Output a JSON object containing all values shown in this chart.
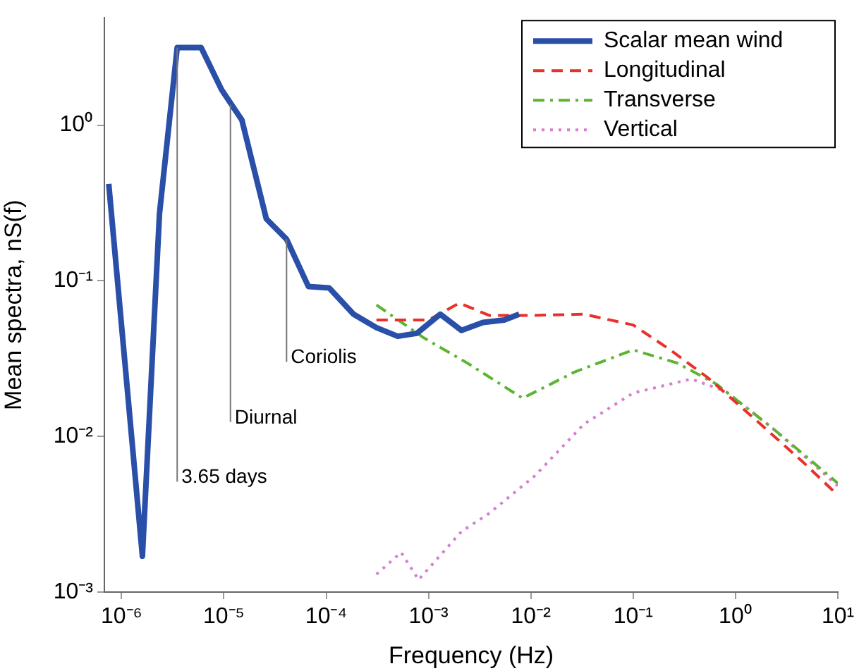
{
  "chart_data": {
    "type": "line",
    "xlabel": "Frequency (Hz)",
    "ylabel": "Mean spectra, nS(f)",
    "log": "xy",
    "grid": false,
    "legend": "top right",
    "marker": "none",
    "xlim": [
      6.8e-07,
      10
    ],
    "ylim": [
      0.001,
      4.9
    ],
    "xticks": [
      {
        "value": 1e-06,
        "label": "10⁻⁶"
      },
      {
        "value": 1e-05,
        "label": "10⁻⁵"
      },
      {
        "value": 0.0001,
        "label": "10⁻⁴"
      },
      {
        "value": 0.001,
        "label": "10⁻³"
      },
      {
        "value": 0.01,
        "label": "10⁻²"
      },
      {
        "value": 0.1,
        "label": "10⁻¹"
      },
      {
        "value": 1,
        "label": "10⁰"
      },
      {
        "value": 10,
        "label": "10¹"
      }
    ],
    "yticks": [
      {
        "value": 0.001,
        "label": "10⁻³"
      },
      {
        "value": 0.01,
        "label": "10⁻²"
      },
      {
        "value": 0.1,
        "label": "10⁻¹"
      },
      {
        "value": 1,
        "label": "10⁰"
      }
    ],
    "series": [
      {
        "name": "Scalar mean wind",
        "color": "#2a4fa8",
        "line_style": "solid",
        "x": [
          7.5e-07,
          1.6e-06,
          2.35e-06,
          3.5e-06,
          6e-06,
          9.5e-06,
          1.5e-05,
          2.6e-05,
          4.1e-05,
          6.7e-05,
          0.000107,
          0.000185,
          0.00031,
          0.0005,
          0.00077,
          0.0013,
          0.0021,
          0.0034,
          0.0055,
          0.0077
        ],
        "values": [
          0.42,
          0.0017,
          0.27,
          3.15,
          3.15,
          1.69,
          1.08,
          0.25,
          0.185,
          0.092,
          0.09,
          0.061,
          0.05,
          0.044,
          0.046,
          0.061,
          0.048,
          0.054,
          0.056,
          0.061
        ]
      },
      {
        "name": "Longitudinal",
        "color": "#e8312a",
        "line_style": "dashed",
        "x": [
          0.00031,
          0.001,
          0.002,
          0.0039,
          0.011,
          0.033,
          0.1,
          0.23,
          0.53,
          1.53,
          4.5,
          9.6
        ],
        "values": [
          0.056,
          0.056,
          0.072,
          0.06,
          0.06,
          0.061,
          0.052,
          0.036,
          0.024,
          0.013,
          0.0069,
          0.0043
        ]
      },
      {
        "name": "Transverse",
        "color": "#5bb531",
        "line_style": "dashdot",
        "x": [
          0.00031,
          0.0009,
          0.0024,
          0.0083,
          0.027,
          0.1,
          0.27,
          0.65,
          2.3,
          10
        ],
        "values": [
          0.07,
          0.043,
          0.0296,
          0.0176,
          0.026,
          0.036,
          0.0296,
          0.0217,
          0.0113,
          0.005
        ]
      },
      {
        "name": "Vertical",
        "color": "#d67fd0",
        "line_style": "dotted",
        "x": [
          0.00031,
          0.00054,
          0.0008,
          0.0021,
          0.0039,
          0.011,
          0.033,
          0.1,
          0.37,
          0.8,
          2.3,
          10
        ],
        "values": [
          0.0013,
          0.0018,
          0.0012,
          0.00245,
          0.0032,
          0.0056,
          0.012,
          0.019,
          0.0234,
          0.0195,
          0.0113,
          0.0048
        ]
      }
    ],
    "annotations": [
      {
        "text": "3.65 days",
        "x": 3.5e-06,
        "y": 3.15
      },
      {
        "text": "Diurnal",
        "x": 1.16e-05,
        "y": 1.35
      },
      {
        "text": "Coriolis",
        "x": 4.1e-05,
        "y": 0.185
      }
    ]
  }
}
